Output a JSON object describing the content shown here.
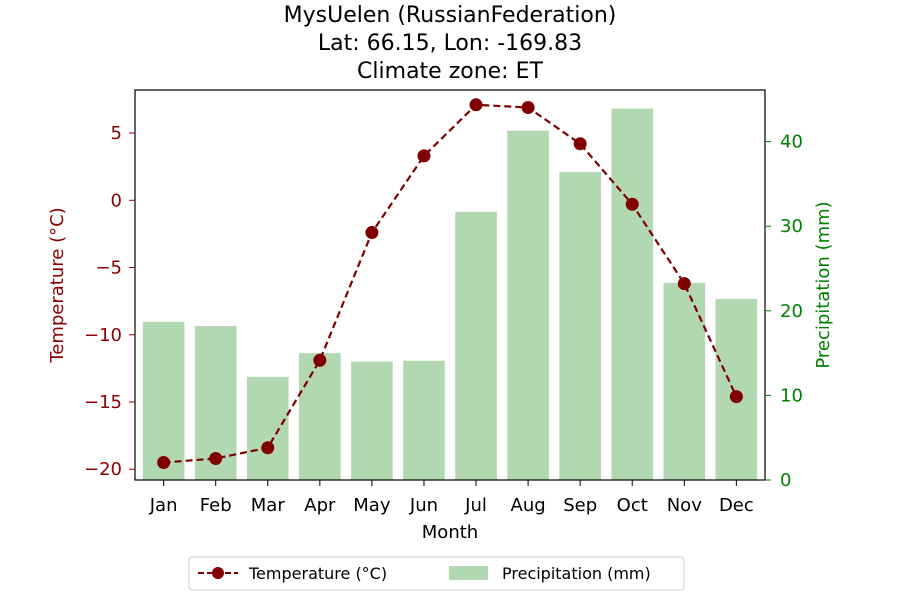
{
  "chart_data": {
    "type": "bar+line",
    "title_lines": [
      "MysUelen (RussianFederation)",
      "Lat: 66.15, Lon: -169.83",
      "Climate zone: ET"
    ],
    "categories": [
      "Jan",
      "Feb",
      "Mar",
      "Apr",
      "May",
      "Jun",
      "Jul",
      "Aug",
      "Sep",
      "Oct",
      "Nov",
      "Dec"
    ],
    "xlabel": "Month",
    "temperature": {
      "name": "Temperature (°C)",
      "axis_label": "Temperature (°C)",
      "values": [
        -19.5,
        -19.2,
        -18.4,
        -11.9,
        -2.4,
        3.3,
        7.1,
        6.9,
        4.2,
        -0.3,
        -6.2,
        -14.6
      ],
      "ylim": [
        -20.8,
        8.2
      ],
      "ticks": [
        -20,
        -15,
        -10,
        -5,
        0,
        5
      ],
      "tick_labels": [
        "−20",
        "−15",
        "−10",
        "−5",
        "0",
        "5"
      ],
      "color": "#800000",
      "axis_color": "#8b0000"
    },
    "precipitation": {
      "name": "Precipitation (mm)",
      "axis_label": "Precipitation (mm)",
      "values": [
        18.7,
        18.2,
        12.2,
        15.0,
        14.0,
        14.1,
        31.7,
        41.3,
        36.4,
        43.9,
        23.3,
        21.4
      ],
      "ylim": [
        0,
        46.1
      ],
      "ticks": [
        0,
        10,
        20,
        30,
        40
      ],
      "tick_labels": [
        "0",
        "10",
        "20",
        "30",
        "40"
      ],
      "color": "#b2d8b2",
      "axis_color": "#008000"
    },
    "legend": {
      "position": "below-center",
      "entries": [
        "Temperature (°C)",
        "Precipitation (mm)"
      ]
    },
    "grid": false
  }
}
